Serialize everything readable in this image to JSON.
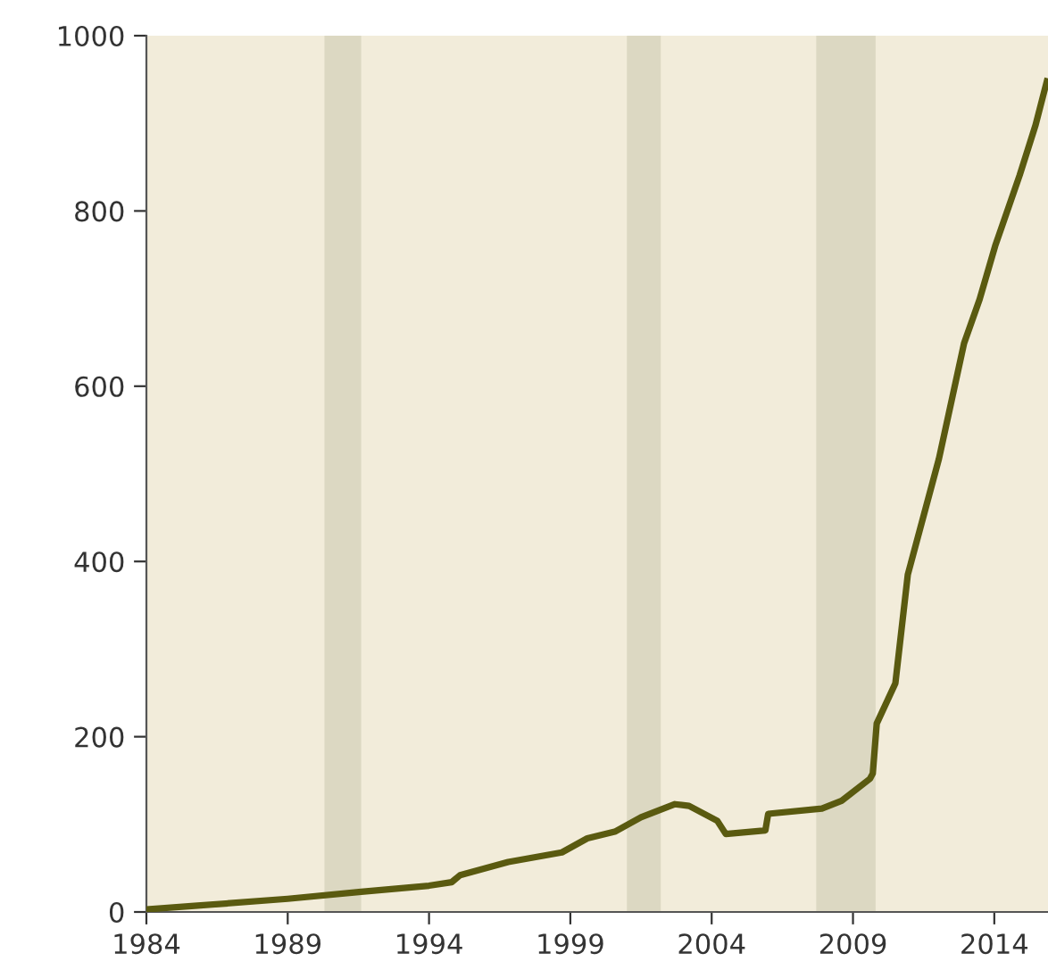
{
  "chart_data": {
    "type": "line",
    "x": [
      1984,
      1985.7,
      1989.0,
      1991.6,
      1994.0,
      1994.8,
      1995.1,
      1996.8,
      1998.7,
      1999.6,
      2000.6,
      2001.5,
      2002.7,
      2003.2,
      2004.2,
      2004.5,
      2005.9,
      2006.0,
      2007.9,
      2008.6,
      2009.6,
      2009.7,
      2009.84,
      2010.5,
      2010.94,
      2012.04,
      2012.93,
      2013.48,
      2014.03,
      2014.9,
      2015.46,
      2015.86
    ],
    "series": [
      {
        "color": "#5a5a10",
        "values": [
          3,
          7,
          15,
          23,
          30,
          34,
          42,
          57,
          68,
          84,
          92,
          108,
          123,
          121,
          104,
          89,
          93,
          112,
          118,
          127,
          152,
          158,
          215,
          261,
          385,
          517,
          649,
          699,
          760,
          841,
          898,
          948
        ]
      }
    ],
    "xlim": [
      1984,
      2015.9
    ],
    "ylim": [
      0,
      1000
    ],
    "xticks": [
      1984,
      1989,
      1994,
      1999,
      2004,
      2009,
      2014
    ],
    "yticks": [
      0,
      200,
      400,
      600,
      800,
      1000
    ],
    "bands": [
      {
        "axis": "x",
        "from": 1990.3,
        "to": 1991.6,
        "color": "#dcd8c2"
      },
      {
        "axis": "x",
        "from": 2001.0,
        "to": 2002.2,
        "color": "#dcd8c2"
      },
      {
        "axis": "x",
        "from": 2007.7,
        "to": 2009.8,
        "color": "#dcd8c2"
      }
    ],
    "grid": false,
    "legend": false,
    "marker": "none",
    "line_style": "solid"
  }
}
